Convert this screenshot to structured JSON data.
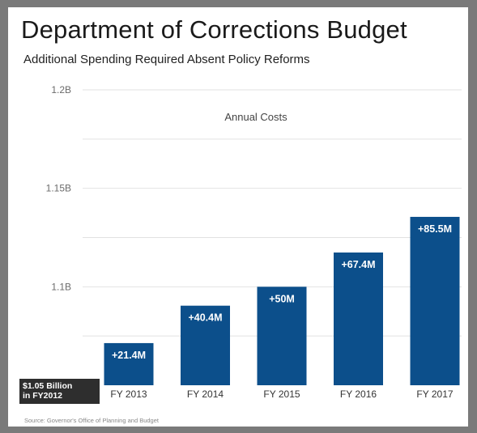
{
  "title": "Department of Corrections Budget",
  "subtitle": "Additional Spending Required Absent Policy Reforms",
  "source": "Source: Governor's Office of Planning and Budget",
  "baseline_note": {
    "line1": "$1.05 Billion",
    "line2": "in FY2012"
  },
  "colors": {
    "bar": "#0c4f8b",
    "frame": "#7a7a7a",
    "grid": "#e2e2e2"
  },
  "chart_data": {
    "type": "bar",
    "title": "Department of Corrections Budget",
    "subtitle": "Additional Spending Required Absent Policy Reforms",
    "categories": [
      "FY 2013",
      "FY 2014",
      "FY 2015",
      "FY 2016",
      "FY 2017"
    ],
    "series": [
      {
        "name": "Annual Costs",
        "values": [
          1.0714,
          1.0904,
          1.1,
          1.1174,
          1.1355
        ],
        "data_labels": [
          "+21.4M",
          "+40.4M",
          "+50M",
          "+67.4M",
          "+85.5M"
        ]
      }
    ],
    "baseline": 1.05,
    "ylim": [
      1.05,
      1.2
    ],
    "yticks": [
      1.1,
      1.15,
      1.2
    ],
    "ytick_labels": [
      "1.1B",
      "1.15B",
      "1.2B"
    ],
    "grid": true,
    "ylabel": "",
    "xlabel": ""
  }
}
